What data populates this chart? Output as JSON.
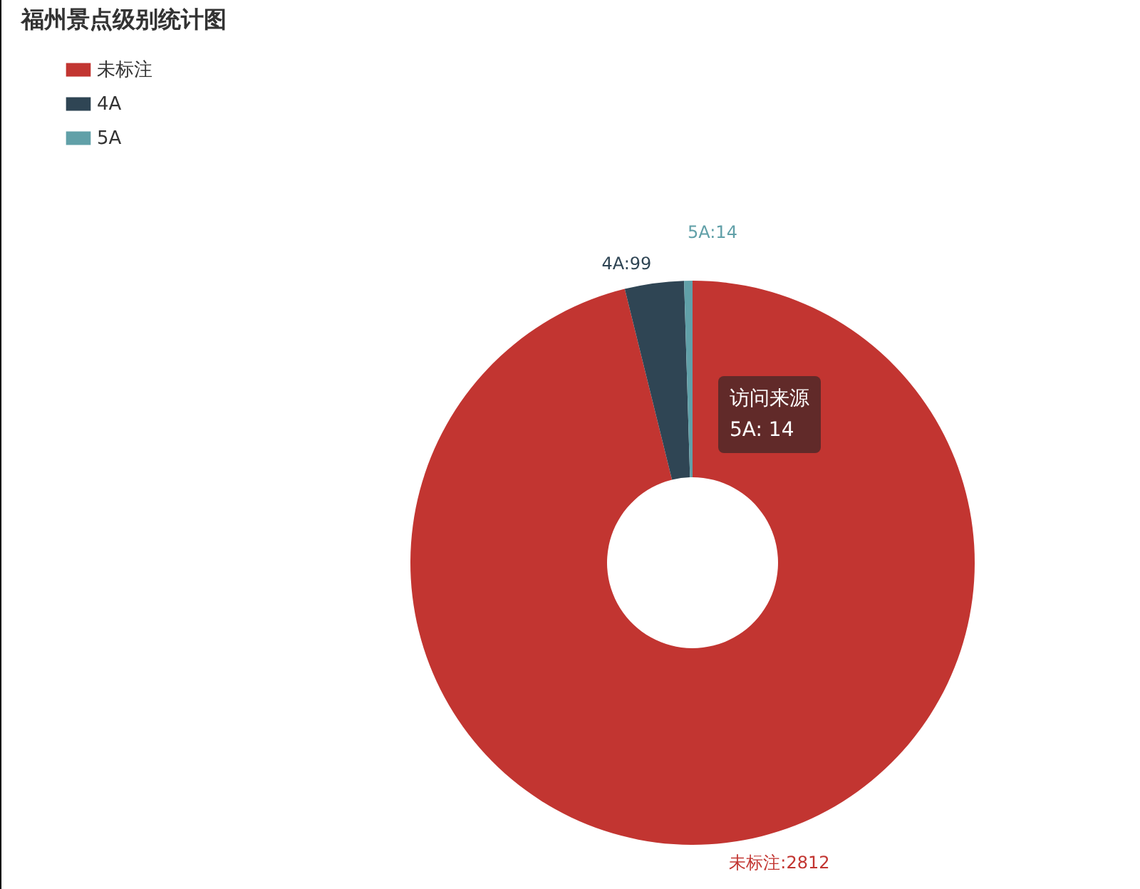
{
  "chart_data": {
    "type": "donut",
    "title": "福州景点级别统计图",
    "categories": [
      "未标注",
      "4A",
      "5A"
    ],
    "values": [
      2812,
      99,
      14
    ],
    "colors": [
      "#c23531",
      "#2f4554",
      "#61a0a8"
    ],
    "value_labels": [
      "未标注:2812",
      "4A:99",
      "5A:14"
    ],
    "legend": "top left",
    "annotations": [
      "访问来源",
      "5A: 14"
    ]
  }
}
